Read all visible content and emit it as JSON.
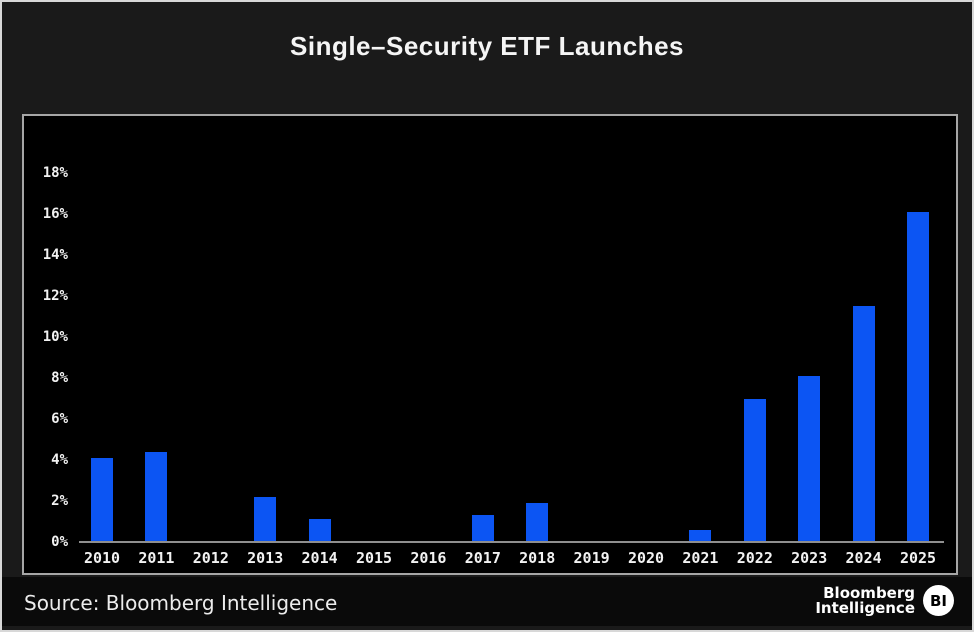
{
  "title": "Single–Security ETF Launches",
  "source": "Source: Bloomberg Intelligence",
  "branding": {
    "line1": "Bloomberg",
    "line2": "Intelligence",
    "badge": "BI"
  },
  "colors": {
    "bar": "#0c55f3",
    "card_background": "#1a1a1a",
    "plot_background": "#000000",
    "frame_border": "#a6a6a6",
    "axis_line": "#8f8f8f",
    "text": "#f2f2f2"
  },
  "chart_data": {
    "type": "bar",
    "title": "Single–Security ETF Launches",
    "categories": [
      "2010",
      "2011",
      "2012",
      "2013",
      "2014",
      "2015",
      "2016",
      "2017",
      "2018",
      "2019",
      "2020",
      "2021",
      "2022",
      "2023",
      "2024",
      "2025"
    ],
    "values": [
      4.1,
      4.4,
      0,
      2.2,
      1.1,
      0,
      0,
      1.3,
      1.9,
      0,
      0,
      0.6,
      7.0,
      8.1,
      11.5,
      16.1
    ],
    "xlabel": "",
    "ylabel": "",
    "ylim": [
      0,
      18
    ],
    "ytick_step": 2,
    "ytick_suffix": "%",
    "grid": false,
    "legend": "none"
  }
}
